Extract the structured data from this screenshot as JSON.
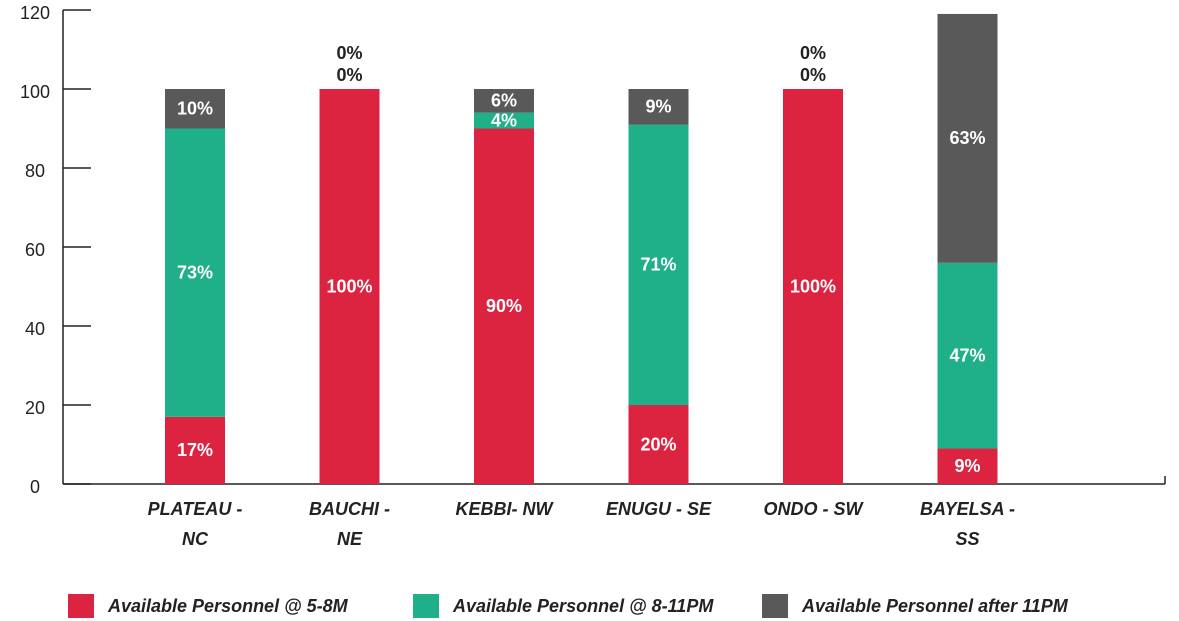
{
  "chart_data": {
    "type": "stacked_bar",
    "categories": [
      "PLATEAU - NC",
      "BAUCHI - NE",
      "KEBBI- NW",
      "ENUGU - SE",
      "ONDO - SW",
      "BAYELSA - SS"
    ],
    "series": [
      {
        "name": "Available Personnel @ 5-8M",
        "color": "#dc2340",
        "values": [
          17,
          100,
          90,
          20,
          100,
          9
        ],
        "value_labels": [
          "17%",
          "100%",
          "90%",
          "20%",
          "100%",
          "9%"
        ]
      },
      {
        "name": "Available Personnel @ 8-11PM",
        "color": "#1fb08a",
        "values": [
          73,
          0,
          4,
          71,
          0,
          47
        ],
        "value_labels": [
          "73%",
          "0%",
          "4%",
          "71%",
          "0%",
          "47%"
        ]
      },
      {
        "name": "Available Personnel after 11PM",
        "color": "#595959",
        "values": [
          10,
          0,
          6,
          9,
          0,
          63
        ],
        "value_labels": [
          "10%",
          "0%",
          "6%",
          "9%",
          "0%",
          "63%"
        ]
      }
    ],
    "ylim": [
      0,
      120
    ],
    "yticks": [
      0,
      20,
      40,
      60,
      80,
      100,
      120
    ],
    "legend": "bottom"
  }
}
